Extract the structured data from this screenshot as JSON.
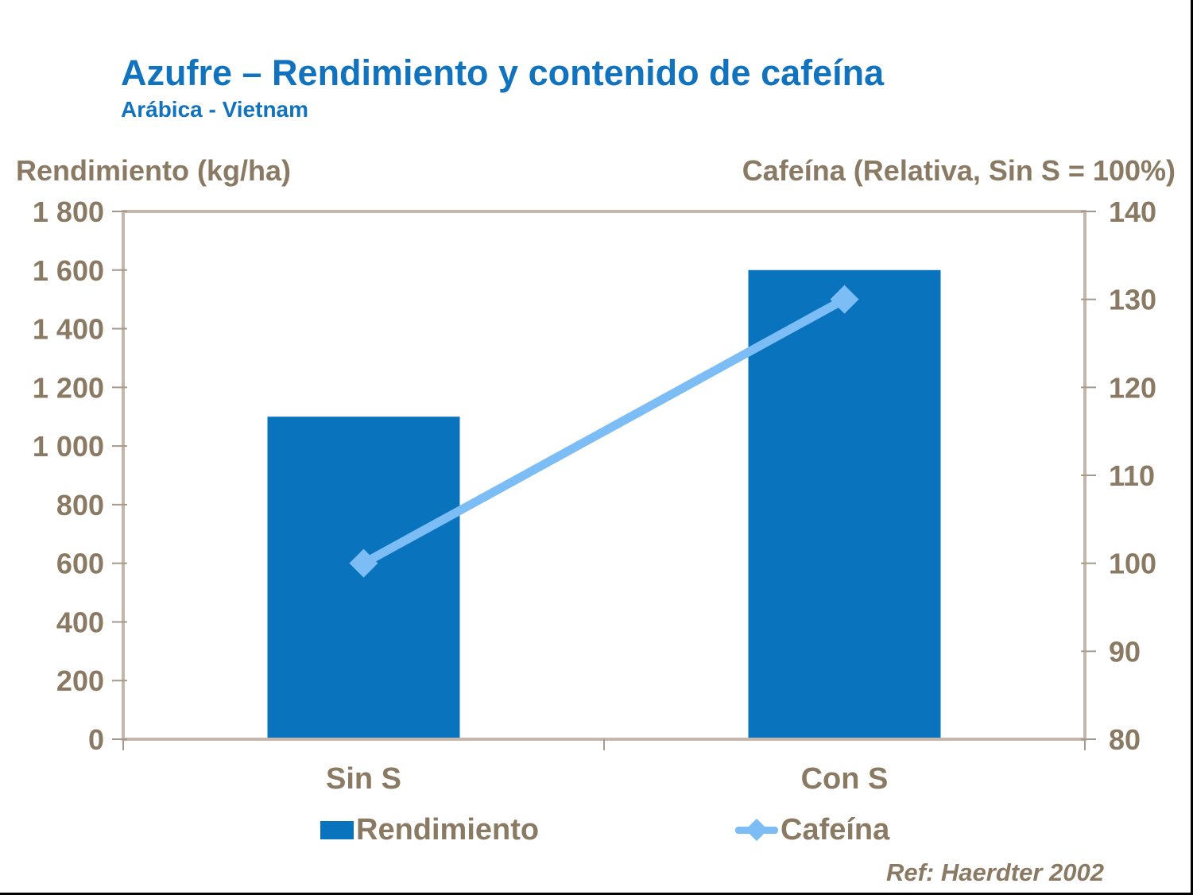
{
  "header": {
    "title": "Azufre – Rendimiento y contenido de cafeína",
    "subtitle": "Arábica - Vietnam"
  },
  "footer": {
    "ref": "Ref: Haerdter 2002"
  },
  "colors": {
    "title": "#1173BD",
    "bar": "#0A73BE",
    "line": "#7DBDF6",
    "text": "#8A7A63",
    "axis": "#C3B7AB",
    "tick": "#A69A8C",
    "edge": "#000000"
  },
  "chart_data": {
    "type": "combo-bar-line",
    "categories": [
      "Sin S",
      "Con S"
    ],
    "series": [
      {
        "name": "Rendimiento",
        "type": "bar",
        "axis": "left",
        "values": [
          1100,
          1600
        ],
        "color": "#0A73BE"
      },
      {
        "name": "Cafeína",
        "type": "line",
        "axis": "right",
        "values": [
          100,
          130
        ],
        "color": "#7DBDF6",
        "marker": "diamond"
      }
    ],
    "left_axis": {
      "label": "Rendimiento (kg/ha)",
      "min": 0,
      "max": 1800,
      "step": 200,
      "tick_labels": [
        "0",
        "200",
        "400",
        "600",
        "800",
        "1 000",
        "1 200",
        "1 400",
        "1 600",
        "1 800"
      ]
    },
    "right_axis": {
      "label": "Cafeína (Relativa, Sin S = 100%)",
      "min": 80,
      "max": 140,
      "step": 10,
      "tick_labels": [
        "80",
        "90",
        "100",
        "110",
        "120",
        "130",
        "140"
      ]
    },
    "legend": [
      {
        "label": "Rendimiento",
        "swatch": "bar"
      },
      {
        "label": "Cafeína",
        "swatch": "line-diamond"
      }
    ],
    "legend_position": "bottom",
    "grid": false
  }
}
